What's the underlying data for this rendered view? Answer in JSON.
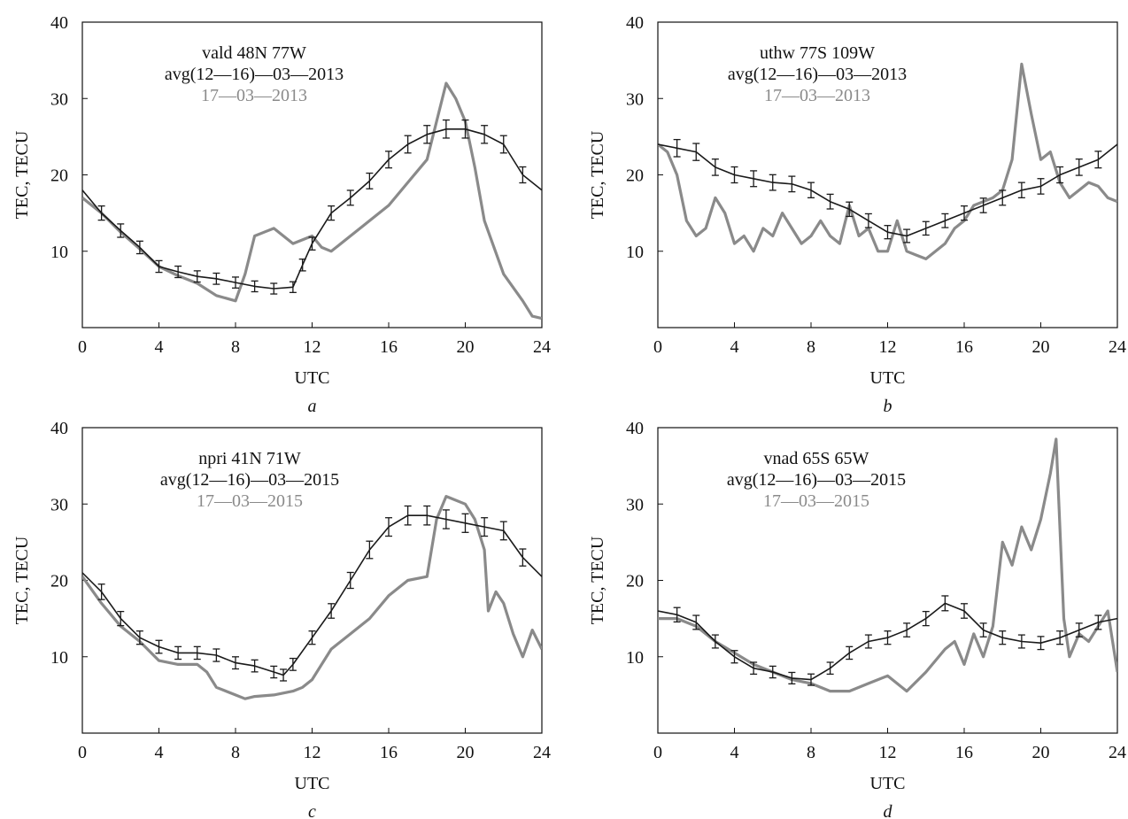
{
  "colors": {
    "mean": "#1a1a1a",
    "event": "#8a8a8a",
    "axis": "#111111"
  },
  "chart_data": [
    {
      "type": "line",
      "panel": "a",
      "xlabel": "UTC",
      "ylabel": "TEC, TECU",
      "xlim": [
        0,
        24
      ],
      "ylim": [
        0,
        40
      ],
      "xticks": [
        "0",
        "4",
        "8",
        "12",
        "16",
        "20",
        "24"
      ],
      "yticks": [
        "10",
        "20",
        "30",
        "40"
      ],
      "annotation": [
        "vald 48N 77W",
        "avg(12—16)—03—2013",
        "17—03—2013"
      ],
      "series": [
        {
          "name": "avg(12—16)—03—2013",
          "x": [
            0,
            1,
            2,
            3,
            4,
            5,
            6,
            7,
            8,
            9,
            10,
            11,
            11.5,
            12,
            13,
            14,
            15,
            16,
            17,
            18,
            19,
            20,
            21,
            22,
            23,
            24
          ],
          "y": [
            18,
            15,
            12.7,
            10.5,
            8,
            7.3,
            6.7,
            6.4,
            5.9,
            5.4,
            5.1,
            5.3,
            8.2,
            11,
            15,
            17,
            19.2,
            22,
            24,
            25.3,
            26,
            26,
            25.3,
            24,
            20,
            18
          ]
        },
        {
          "name": "17—03—2013",
          "x": [
            0,
            1,
            2,
            3,
            4,
            5,
            6,
            7,
            8,
            8.5,
            9,
            9.5,
            10,
            11,
            12,
            12.5,
            13,
            14,
            15,
            16,
            17,
            18,
            18.5,
            19,
            19.5,
            20,
            20.5,
            21,
            22,
            23,
            23.5,
            24
          ],
          "y": [
            17,
            15,
            12.5,
            10.3,
            8,
            6.8,
            5.8,
            4.2,
            3.5,
            7,
            12,
            12.5,
            13,
            11,
            12,
            10.5,
            10,
            12,
            14,
            16,
            19,
            22,
            27,
            32,
            30,
            27,
            21,
            14,
            7,
            3.5,
            1.5,
            1.2
          ]
        }
      ]
    },
    {
      "type": "line",
      "panel": "b",
      "xlabel": "UTC",
      "ylabel": "TEC, TECU",
      "xlim": [
        0,
        24
      ],
      "ylim": [
        0,
        40
      ],
      "xticks": [
        "0",
        "4",
        "8",
        "12",
        "16",
        "20",
        "24"
      ],
      "yticks": [
        "10",
        "20",
        "30",
        "40"
      ],
      "annotation": [
        "uthw 77S 109W",
        "avg(12—16)—03—2013",
        "17—03—2013"
      ],
      "series": [
        {
          "name": "avg(12—16)—03—2013",
          "x": [
            0,
            1,
            2,
            3,
            4,
            5,
            6,
            7,
            8,
            9,
            10,
            11,
            12,
            13,
            14,
            15,
            16,
            17,
            18,
            19,
            20,
            21,
            22,
            23,
            24
          ],
          "y": [
            24,
            23.5,
            23,
            21,
            20,
            19.5,
            19,
            18.8,
            18,
            16.5,
            15.5,
            14,
            12.5,
            12,
            13,
            14,
            15,
            16,
            17,
            18,
            18.5,
            20,
            21,
            22,
            24
          ]
        },
        {
          "name": "17—03—2013",
          "x": [
            0,
            0.5,
            1,
            1.5,
            2,
            2.5,
            3,
            3.5,
            4,
            4.5,
            5,
            5.5,
            6,
            6.5,
            7,
            7.5,
            8,
            8.5,
            9,
            9.5,
            10,
            10.5,
            11,
            11.5,
            12,
            12.5,
            13,
            13.5,
            14,
            14.5,
            15,
            15.5,
            16,
            16.5,
            17,
            17.5,
            18,
            18.5,
            19,
            19.5,
            20,
            20.5,
            21,
            21.5,
            22,
            22.5,
            23,
            23.5,
            24
          ],
          "y": [
            24,
            23,
            20,
            14,
            12,
            13,
            17,
            15,
            11,
            12,
            10,
            13,
            12,
            15,
            13,
            11,
            12,
            14,
            12,
            11,
            16,
            12,
            13,
            10,
            10,
            14,
            10,
            9.5,
            9,
            10,
            11,
            13,
            14,
            16,
            16.5,
            17,
            18,
            22,
            34.5,
            28,
            22,
            23,
            19,
            17,
            18,
            19,
            18.5,
            17,
            16.5
          ]
        }
      ]
    },
    {
      "type": "line",
      "panel": "c",
      "xlabel": "UTC",
      "ylabel": "TEC, TECU",
      "xlim": [
        0,
        24
      ],
      "ylim": [
        0,
        40
      ],
      "xticks": [
        "0",
        "4",
        "8",
        "12",
        "16",
        "20",
        "24"
      ],
      "yticks": [
        "10",
        "20",
        "30",
        "40"
      ],
      "annotation": [
        "npri 41N 71W",
        "avg(12—16)—03—2015",
        "17—03—2015"
      ],
      "series": [
        {
          "name": "avg(12—16)—03—2015",
          "x": [
            0,
            1,
            2,
            3,
            4,
            5,
            6,
            7,
            8,
            9,
            10,
            10.5,
            11,
            12,
            13,
            14,
            15,
            16,
            17,
            18,
            19,
            20,
            21,
            22,
            23,
            24
          ],
          "y": [
            21,
            18.5,
            15,
            12.5,
            11.3,
            10.5,
            10.5,
            10.2,
            9.2,
            8.8,
            8,
            7.6,
            9,
            12.5,
            16,
            20,
            24,
            27,
            28.5,
            28.5,
            28,
            27.5,
            27,
            26.5,
            23,
            20.5
          ]
        },
        {
          "name": "17—03—2015",
          "x": [
            0,
            1,
            2,
            3,
            4,
            5,
            6,
            6.5,
            7,
            8,
            8.5,
            9,
            10,
            11,
            11.5,
            12,
            13,
            14,
            15,
            16,
            17,
            18,
            18.5,
            19,
            20,
            20.5,
            21,
            21.2,
            21.6,
            22,
            22.5,
            23,
            23.5,
            24
          ],
          "y": [
            20.5,
            17,
            14,
            12,
            9.5,
            9,
            9,
            8,
            6,
            5,
            4.5,
            4.8,
            5,
            5.5,
            6,
            7,
            11,
            13,
            15,
            18,
            20,
            20.5,
            28,
            31,
            30,
            28,
            24,
            16,
            18.5,
            17,
            13,
            10,
            13.5,
            11
          ]
        }
      ]
    },
    {
      "type": "line",
      "panel": "d",
      "xlabel": "UTC",
      "ylabel": "TEC, TECU",
      "xlim": [
        0,
        24
      ],
      "ylim": [
        0,
        40
      ],
      "xticks": [
        "0",
        "4",
        "8",
        "12",
        "16",
        "20",
        "24"
      ],
      "yticks": [
        "10",
        "20",
        "30",
        "40"
      ],
      "annotation": [
        "vnad 65S 65W",
        "avg(12—16)—03—2015",
        "17—03—2015"
      ],
      "series": [
        {
          "name": "avg(12—16)—03—2015",
          "x": [
            0,
            1,
            2,
            3,
            4,
            5,
            6,
            7,
            8,
            9,
            10,
            11,
            12,
            13,
            14,
            15,
            16,
            17,
            18,
            19,
            20,
            21,
            22,
            23,
            24
          ],
          "y": [
            16,
            15.5,
            14.5,
            12,
            10,
            8.5,
            8,
            7.2,
            7,
            8.5,
            10.5,
            12,
            12.5,
            13.5,
            15,
            17,
            16,
            13.5,
            12.5,
            12,
            11.8,
            12.5,
            13.5,
            14.5,
            15
          ]
        },
        {
          "name": "17—03—2015",
          "x": [
            0,
            1,
            2,
            3,
            4,
            5,
            6,
            7,
            8,
            9,
            10,
            11,
            12,
            13,
            14,
            15,
            15.5,
            16,
            16.5,
            17,
            17.5,
            18,
            18.5,
            19,
            19.5,
            20,
            20.5,
            20.8,
            21.2,
            21.5,
            22,
            22.5,
            23,
            23.5,
            24
          ],
          "y": [
            15,
            15,
            14,
            12,
            10.5,
            9,
            8,
            7,
            6.5,
            5.5,
            5.5,
            6.5,
            7.5,
            5.5,
            8,
            11,
            12,
            9,
            13,
            10,
            14,
            25,
            22,
            27,
            24,
            28,
            34,
            38.5,
            15,
            10,
            13,
            12,
            14,
            16,
            8
          ]
        }
      ]
    }
  ]
}
